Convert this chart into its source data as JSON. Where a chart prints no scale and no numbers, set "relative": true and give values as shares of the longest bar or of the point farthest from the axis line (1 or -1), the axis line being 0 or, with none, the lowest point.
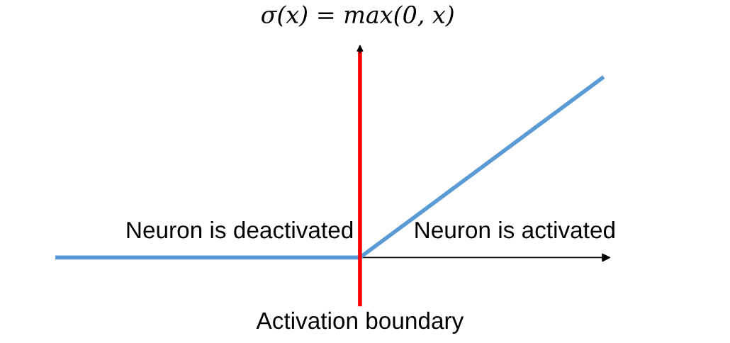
{
  "chart_data": {
    "type": "line",
    "title": "σ(x) = max(0, x)",
    "relative": true,
    "categories": [
      null,
      null,
      null,
      null,
      null,
      null,
      null,
      null,
      null,
      null
    ],
    "series": [
      {
        "color": "#5b9bd5",
        "values": [
          0,
          0,
          0,
          0,
          0,
          0,
          0.25,
          0.5,
          0.75,
          1
        ]
      }
    ],
    "annotations": [
      "Neuron is deactivated",
      "Neuron is activated",
      "Activation boundary"
    ]
  }
}
